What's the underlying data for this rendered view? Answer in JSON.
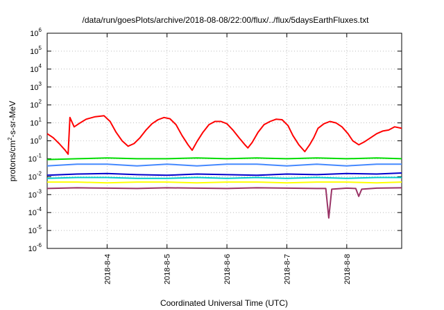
{
  "chart_data": {
    "type": "line",
    "title": "/data/run/goesPlots/archive/2018-08-08/22:00/flux/../flux/5daysEarthFluxes.txt",
    "xlabel": "Coordinated Universal Time (UTC)",
    "ylabel": {
      "prefix": "protons/cm",
      "sup": "2",
      "suffix": "-s-sr-MeV"
    },
    "yscale": "log",
    "ylim": [
      1e-06,
      1000000.0
    ],
    "xlim": [
      "2018-08-03 00:00",
      "2018-08-08 22:00"
    ],
    "grid": true,
    "legend": "none",
    "y_ticks": [
      {
        "exp": -6
      },
      {
        "exp": -5
      },
      {
        "exp": -4
      },
      {
        "exp": -3
      },
      {
        "exp": -2
      },
      {
        "exp": -1
      },
      {
        "exp": 0
      },
      {
        "exp": 1
      },
      {
        "exp": 2
      },
      {
        "exp": 3
      },
      {
        "exp": 4
      },
      {
        "exp": 5
      },
      {
        "exp": 6
      }
    ],
    "x_ticks": [
      "2018-8-4",
      "2018-8-5",
      "2018-8-6",
      "2018-8-7",
      "2018-8-8"
    ],
    "x_tick_days": [
      1,
      2,
      3,
      4,
      5
    ],
    "x_range_days": [
      0,
      5.9167
    ],
    "series": [
      {
        "color": "#ff0000",
        "points": [
          [
            0,
            2.5
          ],
          [
            0.1,
            1.5
          ],
          [
            0.2,
            0.7
          ],
          [
            0.3,
            0.3
          ],
          [
            0.35,
            0.18
          ],
          [
            0.38,
            20
          ],
          [
            0.45,
            6
          ],
          [
            0.55,
            10
          ],
          [
            0.65,
            16
          ],
          [
            0.8,
            22
          ],
          [
            0.95,
            25
          ],
          [
            1.05,
            12
          ],
          [
            1.15,
            3
          ],
          [
            1.25,
            1
          ],
          [
            1.35,
            0.5
          ],
          [
            1.45,
            0.7
          ],
          [
            1.55,
            1.5
          ],
          [
            1.65,
            4
          ],
          [
            1.75,
            9
          ],
          [
            1.85,
            15
          ],
          [
            1.95,
            20
          ],
          [
            2.05,
            17
          ],
          [
            2.15,
            8
          ],
          [
            2.25,
            2
          ],
          [
            2.35,
            0.6
          ],
          [
            2.42,
            0.3
          ],
          [
            2.5,
            0.9
          ],
          [
            2.6,
            3
          ],
          [
            2.7,
            8
          ],
          [
            2.8,
            12
          ],
          [
            2.9,
            12
          ],
          [
            3.0,
            9
          ],
          [
            3.1,
            4
          ],
          [
            3.2,
            1.5
          ],
          [
            3.3,
            0.6
          ],
          [
            3.35,
            0.4
          ],
          [
            3.42,
            0.8
          ],
          [
            3.52,
            3
          ],
          [
            3.62,
            8
          ],
          [
            3.72,
            12
          ],
          [
            3.82,
            16
          ],
          [
            3.92,
            15
          ],
          [
            4.02,
            7
          ],
          [
            4.1,
            2
          ],
          [
            4.2,
            0.6
          ],
          [
            4.3,
            0.25
          ],
          [
            4.38,
            0.6
          ],
          [
            4.45,
            1.5
          ],
          [
            4.52,
            5
          ],
          [
            4.62,
            9
          ],
          [
            4.72,
            12
          ],
          [
            4.82,
            10
          ],
          [
            4.92,
            6
          ],
          [
            5.02,
            2.5
          ],
          [
            5.1,
            1
          ],
          [
            5.2,
            0.6
          ],
          [
            5.3,
            0.9
          ],
          [
            5.4,
            1.5
          ],
          [
            5.5,
            2.5
          ],
          [
            5.6,
            3.5
          ],
          [
            5.7,
            4
          ],
          [
            5.8,
            6
          ],
          [
            5.9167,
            5
          ]
        ]
      },
      {
        "color": "#00dd00",
        "points": [
          [
            0,
            0.09
          ],
          [
            0.5,
            0.1
          ],
          [
            1.0,
            0.11
          ],
          [
            1.5,
            0.1
          ],
          [
            2.0,
            0.1
          ],
          [
            2.5,
            0.11
          ],
          [
            3.0,
            0.1
          ],
          [
            3.5,
            0.11
          ],
          [
            4.0,
            0.1
          ],
          [
            4.5,
            0.11
          ],
          [
            5.0,
            0.1
          ],
          [
            5.5,
            0.11
          ],
          [
            5.9167,
            0.1
          ]
        ]
      },
      {
        "color": "#4488ff",
        "points": [
          [
            0,
            0.04
          ],
          [
            0.5,
            0.05
          ],
          [
            1.0,
            0.05
          ],
          [
            1.5,
            0.04
          ],
          [
            2.0,
            0.05
          ],
          [
            2.5,
            0.04
          ],
          [
            3.0,
            0.05
          ],
          [
            3.5,
            0.05
          ],
          [
            4.0,
            0.04
          ],
          [
            4.5,
            0.05
          ],
          [
            5.0,
            0.04
          ],
          [
            5.5,
            0.05
          ],
          [
            5.9167,
            0.05
          ]
        ]
      },
      {
        "color": "#0000cc",
        "points": [
          [
            0,
            0.012
          ],
          [
            0.5,
            0.014
          ],
          [
            1.0,
            0.015
          ],
          [
            1.5,
            0.013
          ],
          [
            2.0,
            0.012
          ],
          [
            2.5,
            0.014
          ],
          [
            3.0,
            0.013
          ],
          [
            3.5,
            0.012
          ],
          [
            4.0,
            0.014
          ],
          [
            4.5,
            0.013
          ],
          [
            5.0,
            0.015
          ],
          [
            5.5,
            0.014
          ],
          [
            5.9167,
            0.016
          ]
        ]
      },
      {
        "color": "#00cccc",
        "points": [
          [
            0,
            0.008
          ],
          [
            0.5,
            0.009
          ],
          [
            1.0,
            0.009
          ],
          [
            1.5,
            0.008
          ],
          [
            2.0,
            0.008
          ],
          [
            2.5,
            0.009
          ],
          [
            3.0,
            0.008
          ],
          [
            3.5,
            0.009
          ],
          [
            4.0,
            0.008
          ],
          [
            4.5,
            0.009
          ],
          [
            5.0,
            0.008
          ],
          [
            5.5,
            0.009
          ],
          [
            5.9167,
            0.009
          ]
        ]
      },
      {
        "color": "#ffff00",
        "points": [
          [
            0,
            0.005
          ],
          [
            0.5,
            0.005
          ],
          [
            1.0,
            0.0045
          ],
          [
            1.5,
            0.005
          ],
          [
            2.0,
            0.005
          ],
          [
            2.5,
            0.0045
          ],
          [
            3.0,
            0.005
          ],
          [
            3.5,
            0.005
          ],
          [
            4.0,
            0.0045
          ],
          [
            4.5,
            0.005
          ],
          [
            5.0,
            0.005
          ],
          [
            5.5,
            0.0045
          ],
          [
            5.9167,
            0.005
          ]
        ]
      },
      {
        "color": "#993366",
        "points": [
          [
            0,
            0.0022
          ],
          [
            0.5,
            0.0024
          ],
          [
            1.0,
            0.0023
          ],
          [
            1.5,
            0.0022
          ],
          [
            2.0,
            0.0024
          ],
          [
            2.5,
            0.0023
          ],
          [
            3.0,
            0.0022
          ],
          [
            3.5,
            0.0024
          ],
          [
            4.0,
            0.0023
          ],
          [
            4.5,
            0.0022
          ],
          [
            4.65,
            0.0022
          ],
          [
            4.7,
            5e-05
          ],
          [
            4.75,
            0.002
          ],
          [
            5.0,
            0.0023
          ],
          [
            5.15,
            0.0022
          ],
          [
            5.2,
            0.0008
          ],
          [
            5.25,
            0.002
          ],
          [
            5.5,
            0.0023
          ],
          [
            5.9167,
            0.0024
          ]
        ]
      }
    ]
  }
}
